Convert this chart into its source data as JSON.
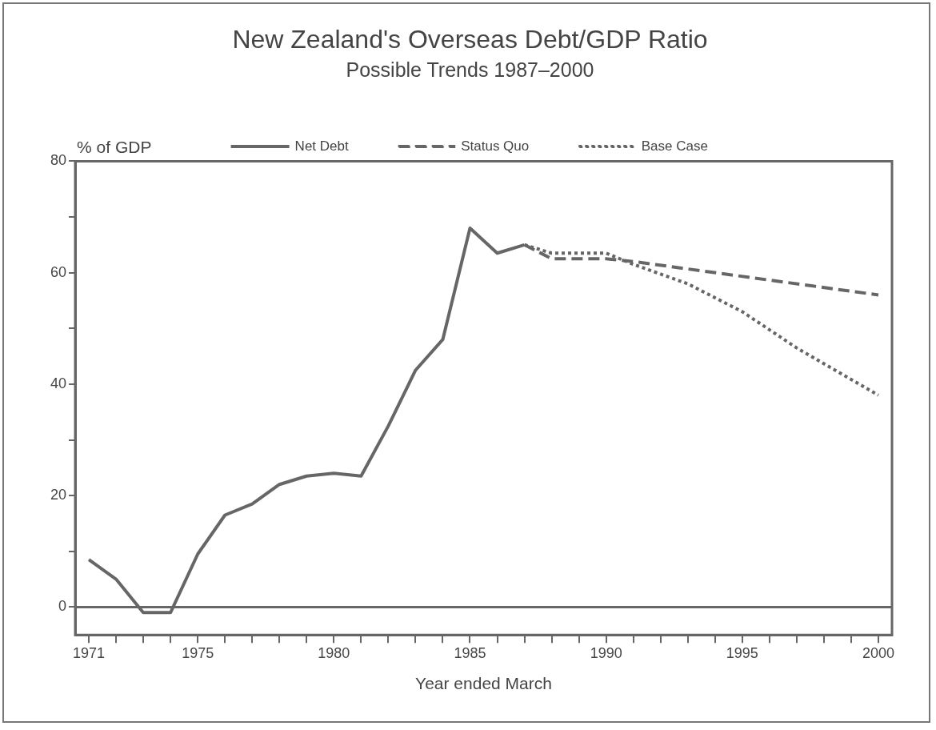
{
  "chart_data": {
    "type": "line",
    "title": "New Zealand's Overseas Debt/GDP Ratio",
    "subtitle": "Possible Trends 1987–2000",
    "xlabel": "Year ended March",
    "ylabel": "% of GDP",
    "xlim": [
      1970.5,
      2000.5
    ],
    "xticks": [
      1971,
      {
        "value": 1972,
        "label": null
      },
      {
        "value": 1973,
        "label": null
      },
      {
        "value": 1974,
        "label": null
      },
      1975,
      {
        "value": 1976,
        "label": null
      },
      {
        "value": 1977,
        "label": null
      },
      {
        "value": 1978,
        "label": null
      },
      {
        "value": 1979,
        "label": null
      },
      1980,
      {
        "value": 1981,
        "label": null
      },
      {
        "value": 1982,
        "label": null
      },
      {
        "value": 1983,
        "label": null
      },
      {
        "value": 1984,
        "label": null
      },
      1985,
      {
        "value": 1986,
        "label": null
      },
      {
        "value": 1987,
        "label": null
      },
      {
        "value": 1988,
        "label": null
      },
      {
        "value": 1989,
        "label": null
      },
      1990,
      {
        "value": 1991,
        "label": null
      },
      {
        "value": 1992,
        "label": null
      },
      {
        "value": 1993,
        "label": null
      },
      {
        "value": 1994,
        "label": null
      },
      1995,
      {
        "value": 1996,
        "label": null
      },
      {
        "value": 1997,
        "label": null
      },
      {
        "value": 1998,
        "label": null
      },
      {
        "value": 1999,
        "label": null
      },
      2000
    ],
    "ylim": [
      -5,
      80
    ],
    "yticks": [
      0,
      {
        "value": 10,
        "label": null
      },
      20,
      {
        "value": 30,
        "label": null
      },
      40,
      {
        "value": 50,
        "label": null
      },
      60,
      {
        "value": 70,
        "label": null
      },
      80
    ],
    "grid": false,
    "legend": "top",
    "marker": "none",
    "ref_lines": [
      {
        "axis": "y",
        "value": 0,
        "color": "#666666",
        "line_style": "solid"
      }
    ],
    "series": [
      {
        "name": "Net Debt",
        "color": "#666666",
        "line_style": "solid",
        "x": [
          1971,
          1972,
          1973,
          1974,
          1975,
          1976,
          1977,
          1978,
          1979,
          1980,
          1981,
          1982,
          1983,
          1984,
          1985,
          1986,
          1987
        ],
        "values": [
          8.5,
          5,
          -1,
          -1,
          9.5,
          16.5,
          18.5,
          22,
          23.5,
          24,
          23.5,
          32.5,
          42.5,
          48,
          68,
          63.5,
          65
        ]
      },
      {
        "name": "Status Quo",
        "color": "#666666",
        "line_style": "dashed",
        "x": [
          1987,
          1988,
          1990,
          1991,
          2000
        ],
        "values": [
          65,
          62.5,
          62.5,
          62,
          56
        ]
      },
      {
        "name": "Base Case",
        "color": "#666666",
        "line_style": "dotted",
        "x": [
          1987,
          1988,
          1990,
          1991,
          1993,
          1995,
          1997,
          2000
        ],
        "values": [
          65,
          63.5,
          63.5,
          61.5,
          58,
          53,
          46.5,
          38
        ]
      }
    ]
  }
}
